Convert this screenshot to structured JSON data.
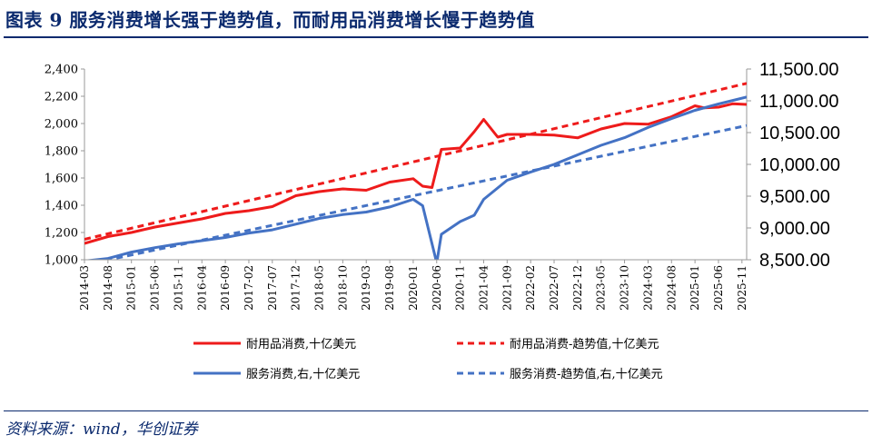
{
  "header": {
    "title": "图表 9   服务消费增长强于趋势值，而耐用品消费增长慢于趋势值"
  },
  "footer": {
    "source": "资料来源：wind，华创证券"
  },
  "colors": {
    "durable": "#ee1b1b",
    "services": "#4472c4",
    "title": "#0b2a6e"
  },
  "chart_data": {
    "type": "line",
    "x": [
      "2014-03",
      "2014-08",
      "2015-01",
      "2015-06",
      "2015-11",
      "2016-04",
      "2016-09",
      "2017-02",
      "2017-07",
      "2017-12",
      "2018-05",
      "2018-10",
      "2019-03",
      "2019-08",
      "2020-01",
      "2020-06",
      "2020-11",
      "2021-04",
      "2021-09",
      "2022-02",
      "2022-07",
      "2022-12",
      "2023-05",
      "2023-10",
      "2024-03",
      "2024-08",
      "2025-01",
      "2025-06",
      "2025-11"
    ],
    "x_start": "2014-03",
    "x_end": "2025-12",
    "left_axis": {
      "ylim": [
        1000,
        2400
      ],
      "ticks": [
        "1,000",
        "1,200",
        "1,400",
        "1,600",
        "1,800",
        "2,000",
        "2,200",
        "2,400"
      ]
    },
    "right_axis": {
      "ylim": [
        8500,
        11500
      ],
      "ticks": [
        "8,500.00",
        "9,000.00",
        "9,500.00",
        "10,000.00",
        "10,500.00",
        "11,000.00",
        "11,500.00"
      ]
    },
    "grid": false,
    "legend_position": "bottom",
    "series": [
      {
        "name": "耐用品消费,十亿美元",
        "axis": "left",
        "style": "solid",
        "points": [
          [
            "2014-03",
            1120
          ],
          [
            "2014-08",
            1170
          ],
          [
            "2015-01",
            1200
          ],
          [
            "2015-06",
            1240
          ],
          [
            "2015-11",
            1270
          ],
          [
            "2016-04",
            1300
          ],
          [
            "2016-09",
            1340
          ],
          [
            "2017-02",
            1360
          ],
          [
            "2017-07",
            1390
          ],
          [
            "2017-12",
            1470
          ],
          [
            "2018-05",
            1500
          ],
          [
            "2018-10",
            1520
          ],
          [
            "2019-03",
            1510
          ],
          [
            "2019-08",
            1570
          ],
          [
            "2020-01",
            1595
          ],
          [
            "2020-03",
            1540
          ],
          [
            "2020-05",
            1530
          ],
          [
            "2020-07",
            1810
          ],
          [
            "2020-11",
            1820
          ],
          [
            "2021-02",
            1940
          ],
          [
            "2021-04",
            2030
          ],
          [
            "2021-07",
            1900
          ],
          [
            "2021-09",
            1920
          ],
          [
            "2022-02",
            1920
          ],
          [
            "2022-07",
            1915
          ],
          [
            "2022-12",
            1895
          ],
          [
            "2023-05",
            1960
          ],
          [
            "2023-10",
            2000
          ],
          [
            "2024-03",
            1995
          ],
          [
            "2024-08",
            2050
          ],
          [
            "2025-01",
            2130
          ],
          [
            "2025-03",
            2115
          ],
          [
            "2025-06",
            2120
          ],
          [
            "2025-09",
            2145
          ],
          [
            "2025-12",
            2140
          ]
        ]
      },
      {
        "name": "耐用品消费-趋势值,十亿美元",
        "axis": "left",
        "style": "dashed",
        "points": [
          [
            "2014-03",
            1150
          ],
          [
            "2025-12",
            2295
          ]
        ]
      },
      {
        "name": "服务消费,右,十亿美元",
        "axis": "right",
        "style": "solid",
        "points": [
          [
            "2014-03",
            8480
          ],
          [
            "2014-08",
            8520
          ],
          [
            "2015-01",
            8620
          ],
          [
            "2015-06",
            8690
          ],
          [
            "2015-11",
            8750
          ],
          [
            "2016-04",
            8800
          ],
          [
            "2016-09",
            8850
          ],
          [
            "2017-02",
            8920
          ],
          [
            "2017-07",
            8970
          ],
          [
            "2017-12",
            9060
          ],
          [
            "2018-05",
            9150
          ],
          [
            "2018-10",
            9210
          ],
          [
            "2019-03",
            9250
          ],
          [
            "2019-08",
            9330
          ],
          [
            "2020-01",
            9450
          ],
          [
            "2020-03",
            9350
          ],
          [
            "2020-06",
            8450
          ],
          [
            "2020-07",
            8900
          ],
          [
            "2020-11",
            9100
          ],
          [
            "2021-02",
            9200
          ],
          [
            "2021-04",
            9450
          ],
          [
            "2021-09",
            9750
          ],
          [
            "2022-02",
            9880
          ],
          [
            "2022-07",
            10000
          ],
          [
            "2022-12",
            10150
          ],
          [
            "2023-05",
            10300
          ],
          [
            "2023-10",
            10420
          ],
          [
            "2024-03",
            10580
          ],
          [
            "2024-08",
            10720
          ],
          [
            "2025-01",
            10850
          ],
          [
            "2025-06",
            10950
          ],
          [
            "2025-12",
            11060
          ]
        ]
      },
      {
        "name": "服务消费-趋势值,右,十亿美元",
        "axis": "right",
        "style": "dashed",
        "points": [
          [
            "2014-03",
            8420
          ],
          [
            "2025-12",
            10610
          ]
        ]
      }
    ]
  }
}
